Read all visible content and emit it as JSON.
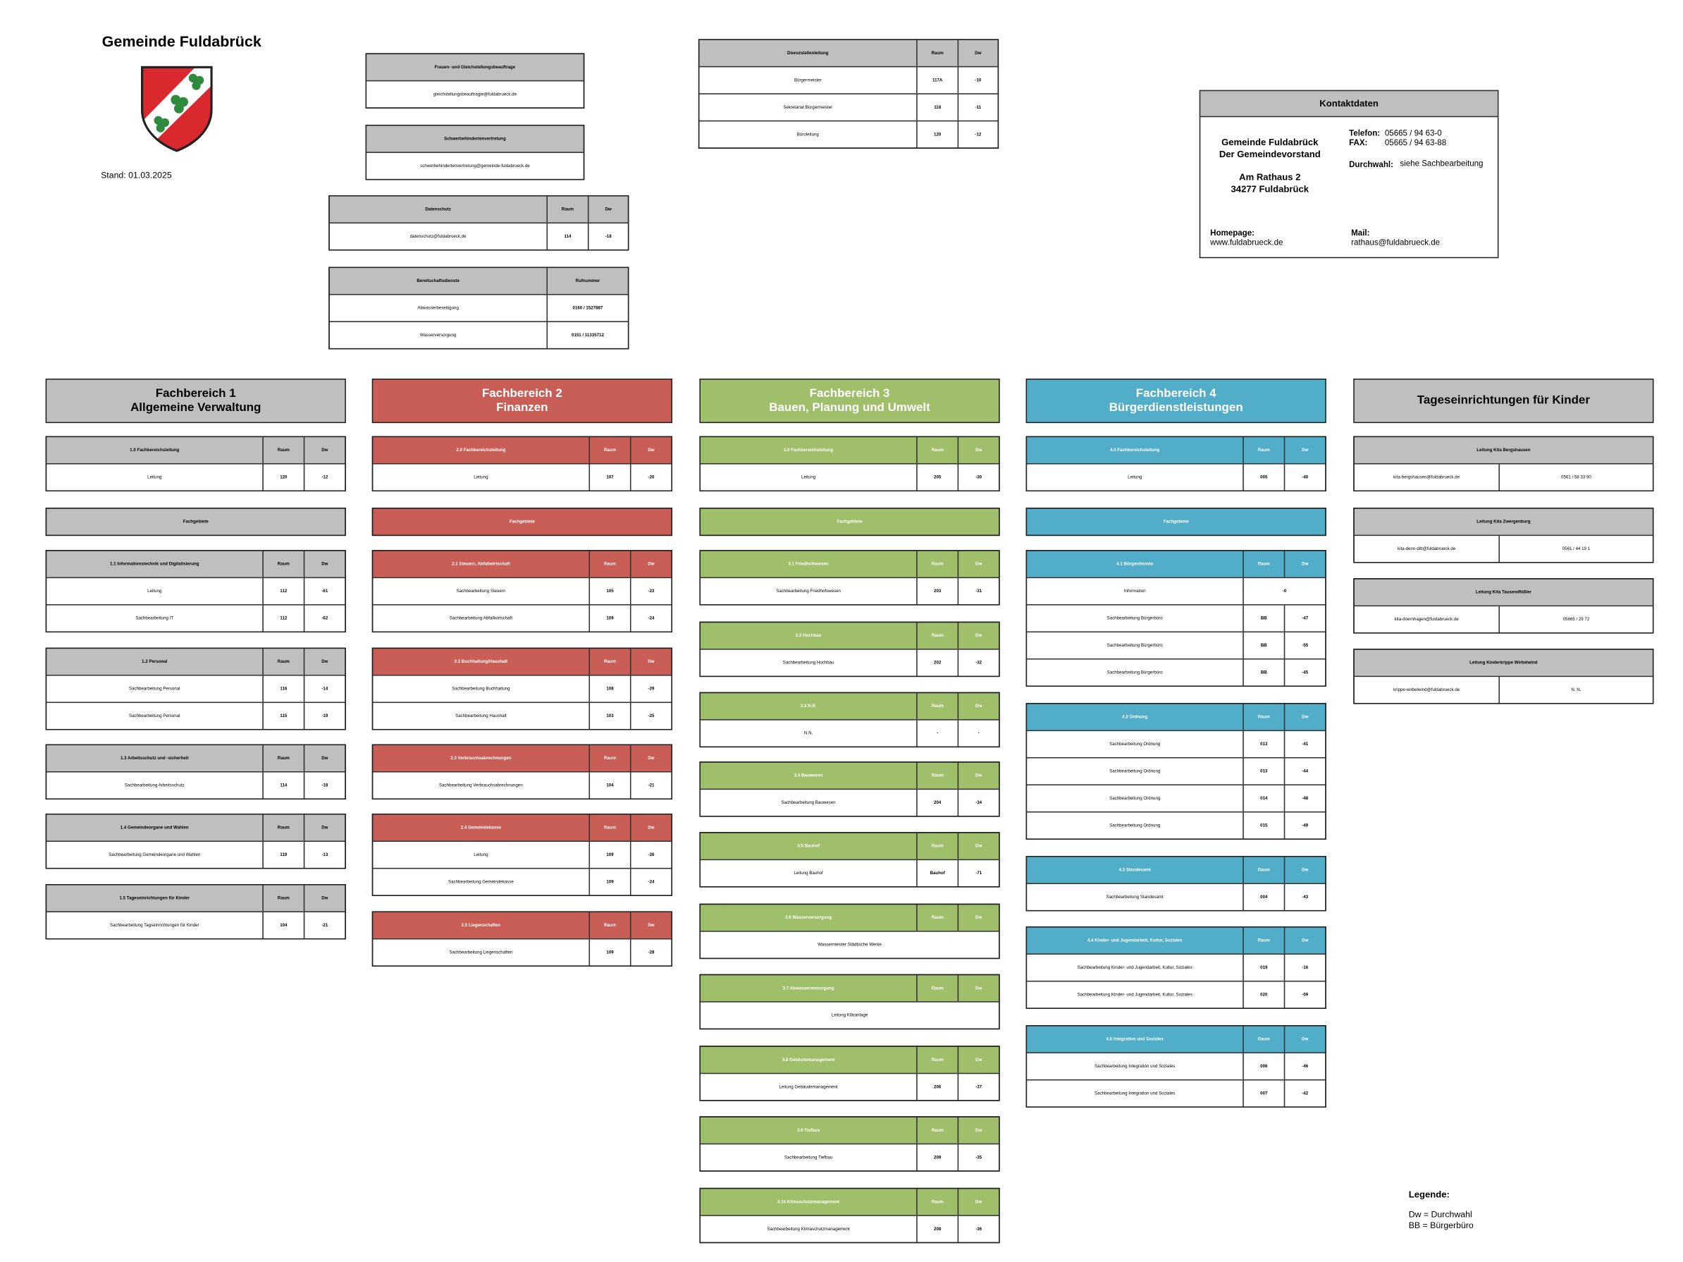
{
  "header": {
    "title": "Gemeinde Fuldabrück",
    "stand": "Stand: 01.03.2025"
  },
  "top_tables": [
    {
      "headers": [
        "Frauen- und Gleichstellungsbeauftrage"
      ],
      "rows": [
        [
          "gleichstellungsbeauftragte@fuldabrueck.de"
        ]
      ]
    },
    {
      "headers": [
        "Schwerbehindertenvertretung"
      ],
      "rows": [
        [
          "schwerbehindertenvertretung@gemeinde-fuldabrueck.de"
        ]
      ]
    },
    {
      "headers": [
        "Datenschutz",
        "Raum",
        "Dw"
      ],
      "rows": [
        [
          "datenschutz@fuldabrueck.de",
          "114",
          "-18"
        ]
      ]
    },
    {
      "headers": [
        "Bereitschaftsdienste",
        "Rufnummer"
      ],
      "rows": [
        [
          "Abwasserbeseitigung",
          "0160 / 1527887"
        ],
        [
          "Wasserversorgung",
          "0151 / 11335712"
        ]
      ]
    },
    {
      "headers": [
        "Dienststellenleitung",
        "Raum",
        "Dw"
      ],
      "rows": [
        [
          "Bürgermeister",
          "117A",
          "-10"
        ],
        [
          "Sekretariat Bürgermeister",
          "118",
          "-11"
        ],
        [
          "Büroleitung",
          "120",
          "-12"
        ]
      ]
    }
  ],
  "contact": {
    "title": "Kontaktdaten",
    "address": [
      "Gemeinde Fuldabrück",
      "Der Gemeindevorstand",
      "Am Rathaus 2",
      "34277 Fuldabrück"
    ],
    "phone_label": "Telefon:",
    "phone": "05665 / 94 63-0",
    "fax_label": "FAX:",
    "fax": "05665 / 94 63-88",
    "ext_label": "Durchwahl:",
    "ext": "siehe Sachbearbeitung",
    "homepage_label": "Homepage:",
    "homepage": "www.fuldabrueck.de",
    "mail_label": "Mail:",
    "mail": "rathaus@fuldabrueck.de"
  },
  "columns": [
    {
      "title": "Fachbereich 1",
      "subtitle": "Allgemeine Verwaltung",
      "color": "#bfbfbf",
      "tables": [
        {
          "headers": [
            "1.0 Fachbereichsleitung",
            "Raum",
            "Dw"
          ],
          "rows": [
            [
              "Leitung",
              "120",
              "-12"
            ]
          ]
        },
        {
          "headers": [
            "Fachgebiete"
          ],
          "rows": []
        },
        {
          "headers": [
            "1.1 Informationstechnik und Digitalisierung",
            "Raum",
            "Dw"
          ],
          "rows": [
            [
              "Leitung",
              "112",
              "-61"
            ],
            [
              "Sachbearbeitung IT",
              "112",
              "-62"
            ]
          ]
        },
        {
          "headers": [
            "1.2 Personal",
            "Raum",
            "Dw"
          ],
          "rows": [
            [
              "Sachbearbeitung Personal",
              "116",
              "-14"
            ],
            [
              "Sachbearbeitung Personal",
              "115",
              "-19"
            ]
          ]
        },
        {
          "headers": [
            "1.3 Arbeitsschutz und -sicherheit",
            "Raum",
            "Dw"
          ],
          "rows": [
            [
              "Sachbearbeitung Arbeitsschutz",
              "114",
              "-18"
            ]
          ]
        },
        {
          "headers": [
            "1.4 Gemeindeorgane und Wahlen",
            "Raum",
            "Dw"
          ],
          "rows": [
            [
              "Sachbearbeitung Gemeindeorgane und Wahlen",
              "119",
              "-13"
            ]
          ]
        },
        {
          "headers": [
            "1.5 Tageseinrichtungen für Kinder",
            "Raum",
            "Dw"
          ],
          "rows": [
            [
              "Sachbearbeitung Tagseinrichtungen für Kinder",
              "104",
              "-21"
            ]
          ]
        }
      ]
    },
    {
      "title": "Fachbereich 2",
      "subtitle": "Finanzen",
      "color": "#c95e57",
      "tables": [
        {
          "headers": [
            "2.0 Fachbereichsleitung",
            "Raum",
            "Dw"
          ],
          "rows": [
            [
              "Leitung",
              "107",
              "-20"
            ]
          ]
        },
        {
          "headers": [
            "Fachgebiete"
          ],
          "rows": []
        },
        {
          "headers": [
            "2.1 Steuern, Abfallwirtschaft",
            "Raum",
            "Dw"
          ],
          "rows": [
            [
              "Sachbearbeitung Steuern",
              "105",
              "-23"
            ],
            [
              "Sachbearbeitung Abfallwirtschaft",
              "109",
              "-24"
            ]
          ]
        },
        {
          "headers": [
            "2.2 Buchhaltung/Haushalt",
            "Raum",
            "Dw"
          ],
          "rows": [
            [
              "Sachbearbeitung Buchhaltung",
              "108",
              "-29"
            ],
            [
              "Sachbearbeitung Haushalt",
              "103",
              "-25"
            ]
          ]
        },
        {
          "headers": [
            "2.3 Verbrauchsabrechnungen",
            "Raum",
            "Dw"
          ],
          "rows": [
            [
              "Sachbearbeitung Verbrauchsabrechnungen",
              "104",
              "-21"
            ]
          ]
        },
        {
          "headers": [
            "2.4 Gemeindekasse",
            "Raum",
            "Dw"
          ],
          "rows": [
            [
              "Leitung",
              "109",
              "-26"
            ],
            [
              "Sachbearbeitung Gemeindekasse",
              "109",
              "-24"
            ]
          ]
        },
        {
          "headers": [
            "2.5 Liegenschaften",
            "Raum",
            "Dw"
          ],
          "rows": [
            [
              "Sachbearbeitung Liegenschaften",
              "109",
              "-28"
            ]
          ]
        }
      ]
    },
    {
      "title": "Fachbereich 3",
      "subtitle": "Bauen, Planung und Umwelt",
      "color": "#a0bf6b",
      "tables": [
        {
          "headers": [
            "3.0 Fachbereichsleitung",
            "Raum",
            "Dw"
          ],
          "rows": [
            [
              "Leitung",
              "205",
              "-30"
            ]
          ]
        },
        {
          "headers": [
            "Fachgebiete"
          ],
          "rows": []
        },
        {
          "headers": [
            "3.1 Friedhofswesen",
            "Raum",
            "Dw"
          ],
          "rows": [
            [
              "Sachbearbeitung Friedhofswesen",
              "203",
              "-31"
            ]
          ]
        },
        {
          "headers": [
            "3.2 Hochbau",
            "Raum",
            "Dw"
          ],
          "rows": [
            [
              "Sachbearbeitung Hochbau",
              "202",
              "-32"
            ]
          ]
        },
        {
          "headers": [
            "3.3 N.N.",
            "Raum",
            "Dw"
          ],
          "rows": [
            [
              "N.N.",
              "-",
              "-"
            ]
          ]
        },
        {
          "headers": [
            "3.4 Bauwesen",
            "Raum",
            "Dw"
          ],
          "rows": [
            [
              "Sachbearbeitung Bauwesen",
              "204",
              "-34"
            ]
          ]
        },
        {
          "headers": [
            "3.5 Bauhof",
            "Raum",
            "Dw"
          ],
          "rows": [
            [
              "Leitung Bauhof",
              "Bauhof",
              "-71"
            ]
          ]
        },
        {
          "headers": [
            "3.6 Wasserversorgung",
            "Raum",
            "Dw"
          ],
          "rows": [
            [
              "Wassermeister Städtische Werke"
            ]
          ]
        },
        {
          "headers": [
            "3.7 Abwasserentsorgung",
            "Raum",
            "Dw"
          ],
          "rows": [
            [
              "Leitung Kläranlage"
            ]
          ]
        },
        {
          "headers": [
            "3.8 Gebäudemanagement",
            "Raum",
            "Dw"
          ],
          "rows": [
            [
              "Leitung Gebäudemanagement",
              "206",
              "-37"
            ]
          ]
        },
        {
          "headers": [
            "3.9 Tiefbau",
            "Raum",
            "Dw"
          ],
          "rows": [
            [
              "Sachbearbeitung Tiefbau",
              "209",
              "-35"
            ]
          ]
        },
        {
          "headers": [
            "3.10 Klimaschutzmanagement",
            "Raum",
            "Dw"
          ],
          "rows": [
            [
              "Sachbearbeitung Klimaschutzmanagement",
              "208",
              "-36"
            ]
          ]
        }
      ]
    },
    {
      "title": "Fachbereich 4",
      "subtitle": "Bürgerdienstleistungen",
      "color": "#52aec8",
      "tables": [
        {
          "headers": [
            "4.0 Fachbereichsleitung",
            "Raum",
            "Dw"
          ],
          "rows": [
            [
              "Leitung",
              "005",
              "-40"
            ]
          ]
        },
        {
          "headers": [
            "Fachgebiete"
          ],
          "rows": []
        },
        {
          "headers": [
            "4.1 Bürgerdienste",
            "Raum",
            "Dw"
          ],
          "rows": [
            [
              "Information",
              "-0"
            ],
            [
              "Sachbearbeitung Bürgerbüro",
              "BB",
              "-47"
            ],
            [
              "Sachbearbeitung Bürgerbüro",
              "BB",
              "-55"
            ],
            [
              "Sachbearbeitung Bürgerbüro",
              "BB",
              "-45"
            ]
          ]
        },
        {
          "headers": [
            "4.2 Ordnung",
            "Raum",
            "Dw"
          ],
          "rows": [
            [
              "Sachbearbeitung Ordnung",
              "013",
              "-41"
            ],
            [
              "Sachbearbeitung Ordnung",
              "013",
              "-44"
            ],
            [
              "Sachbearbeitung Ordnung",
              "014",
              "-48"
            ],
            [
              "Sachbearbeitung Ordnung",
              "015",
              "-49"
            ]
          ]
        },
        {
          "headers": [
            "4.3 Standesamt",
            "Raum",
            "Dw"
          ],
          "rows": [
            [
              "Sachbearbeitung Standesamt",
              "004",
              "-43"
            ]
          ]
        },
        {
          "headers": [
            "4.4 Kinder- und Jugendarbeit, Kultur, Soziales",
            "Raum",
            "Dw"
          ],
          "rows": [
            [
              "Sachbearbeitung Kinder- und Jugendarbeit, Kultur, Soziales",
              "019",
              "-16"
            ],
            [
              "Sachbearbeitung Kinder- und Jugendarbeit, Kultur, Soziales",
              "020",
              "-59"
            ]
          ]
        },
        {
          "headers": [
            "4.5 Integration und Soziales",
            "Raum",
            "Dw"
          ],
          "rows": [
            [
              "Sachbearbeitung Integration und Soziales",
              "006",
              "-46"
            ],
            [
              "Sachbearbeitung Integration und Soziales",
              "007",
              "-42"
            ]
          ]
        }
      ]
    },
    {
      "title": "Tageseinrichtungen für Kinder",
      "color": "#bfbfbf",
      "tables": [
        {
          "headers": [
            "Leitung Kita Bergshausen"
          ],
          "rows": [
            [
              "kita-bergshausen@fuldabrueck.de",
              "0561 / 58 33 90"
            ]
          ]
        },
        {
          "headers": [
            "Leitung Kita Zwergenburg"
          ],
          "rows": [
            [
              "kita-denn-ditt@fuldabrueck.de",
              "0561 / 44 19 1"
            ]
          ]
        },
        {
          "headers": [
            "Leitung Kita Tausendfüßler"
          ],
          "rows": [
            [
              "kita-doernhagen@fuldabrueck.de",
              "05665 / 29 72"
            ]
          ]
        },
        {
          "headers": [
            "Leitung Kinderkrippe Wirbelwind"
          ],
          "rows": [
            [
              "krippe-wirbelwind@fuldabrueck.de",
              "N. N."
            ]
          ]
        }
      ]
    }
  ],
  "legend": {
    "title": "Legende:",
    "items": [
      "Dw = Durchwahl",
      "BB = Bürgerbüro"
    ]
  }
}
